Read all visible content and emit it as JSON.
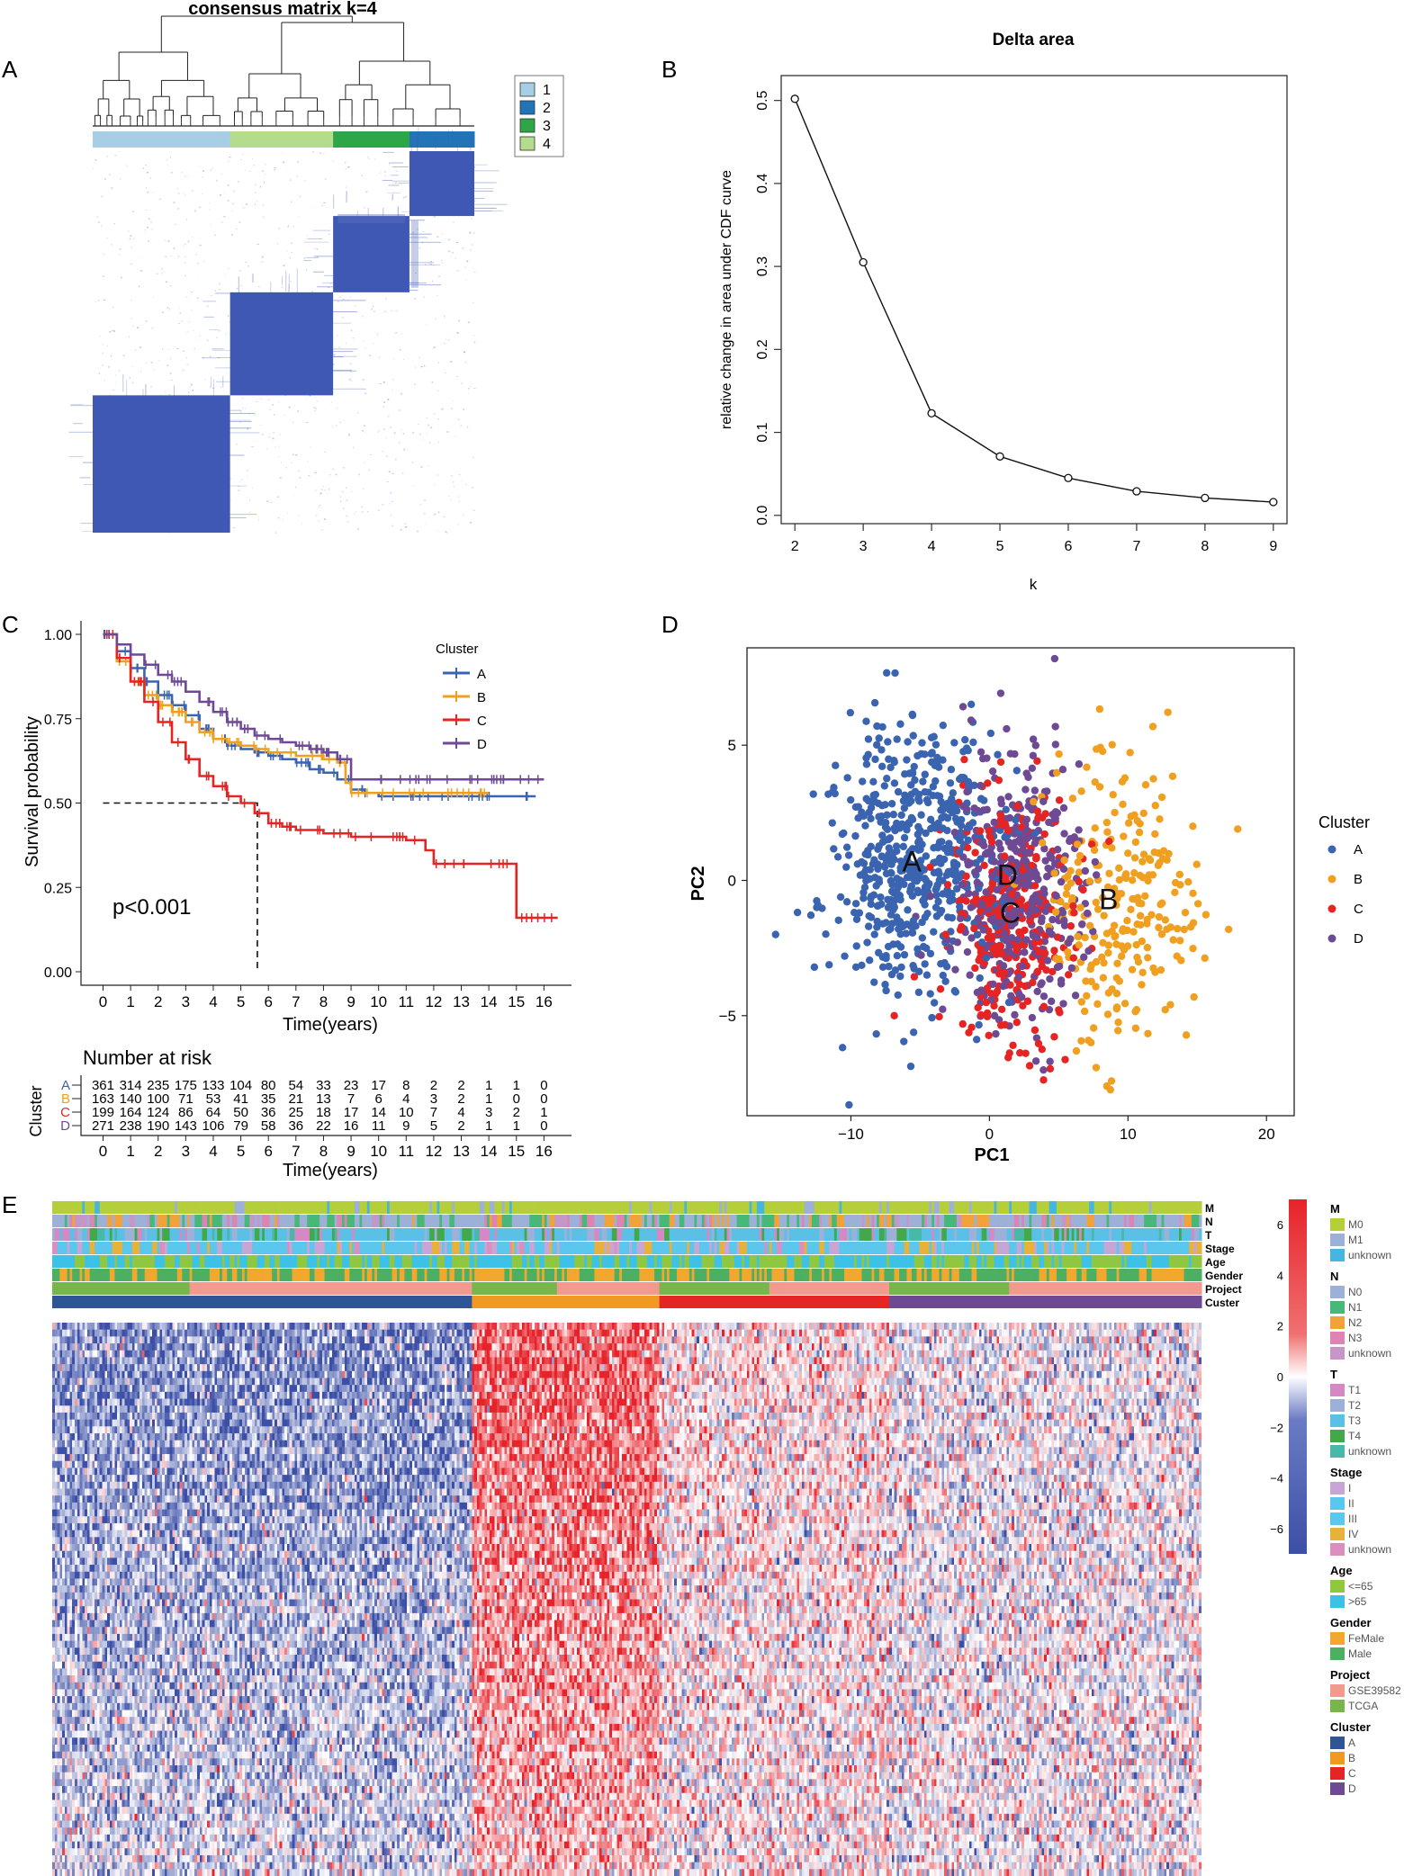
{
  "panels": {
    "a": "A",
    "b": "B",
    "c": "C",
    "d": "D",
    "e": "E"
  },
  "chart_data": [
    {
      "id": "consensus",
      "type": "heatmap",
      "title": "consensus matrix k=4",
      "legend": [
        {
          "label": "1",
          "color": "#a6cfe6"
        },
        {
          "label": "2",
          "color": "#2274b6"
        },
        {
          "label": "3",
          "color": "#2ea547"
        },
        {
          "label": "4",
          "color": "#b5dc8c"
        }
      ],
      "column_groups": [
        {
          "cluster": "1",
          "fraction": 0.36
        },
        {
          "cluster": "4",
          "fraction": 0.27
        },
        {
          "cluster": "3",
          "fraction": 0.2
        },
        {
          "cluster": "2",
          "fraction": 0.17
        }
      ],
      "block_color": "#3f58b4"
    },
    {
      "id": "delta",
      "type": "line",
      "title": "Delta area",
      "xlabel": "k",
      "ylabel": "relative change in area under CDF curve",
      "x": [
        2,
        3,
        4,
        5,
        6,
        7,
        8,
        9
      ],
      "y": [
        0.502,
        0.305,
        0.123,
        0.071,
        0.045,
        0.029,
        0.021,
        0.016
      ],
      "xlim": [
        1.8,
        9.2
      ],
      "ylim": [
        -0.01,
        0.53
      ],
      "xticks": [
        2,
        3,
        4,
        5,
        6,
        7,
        8,
        9
      ],
      "yticks": [
        0.0,
        0.1,
        0.2,
        0.3,
        0.4,
        0.5
      ],
      "ytick_labels": [
        "0.0",
        "0.1",
        "0.2",
        "0.3",
        "0.4",
        "0.5"
      ]
    },
    {
      "id": "km",
      "type": "line",
      "xlabel": "Time(years)",
      "ylabel": "Survival probability",
      "xlim": [
        -0.8,
        17
      ],
      "ylim": [
        -0.04,
        1.04
      ],
      "xticks": [
        0,
        1,
        2,
        3,
        4,
        5,
        6,
        7,
        8,
        9,
        10,
        11,
        12,
        13,
        14,
        15,
        16
      ],
      "yticks": [
        0.0,
        0.25,
        0.5,
        0.75,
        1.0
      ],
      "ytick_labels": [
        "0.00",
        "0.25",
        "0.50",
        "0.75",
        "1.00"
      ],
      "legend_title": "Cluster",
      "pvalue": "p<0.001",
      "median_line": {
        "x": 5.6,
        "y": 0.5
      },
      "series": [
        {
          "name": "A",
          "color": "#3a64b0",
          "times": [
            0,
            0.5,
            1,
            1.5,
            2,
            2.5,
            3,
            3.5,
            4,
            4.5,
            5,
            5.5,
            6,
            6.5,
            7,
            7.5,
            8,
            8.5,
            9,
            9.5,
            10,
            11,
            12,
            13,
            14,
            15.7
          ],
          "surv": [
            1.0,
            0.95,
            0.9,
            0.86,
            0.82,
            0.79,
            0.76,
            0.72,
            0.69,
            0.67,
            0.66,
            0.65,
            0.64,
            0.63,
            0.62,
            0.6,
            0.59,
            0.57,
            0.54,
            0.53,
            0.52,
            0.52,
            0.52,
            0.52,
            0.52,
            0.52
          ]
        },
        {
          "name": "B",
          "color": "#f0a021",
          "times": [
            0,
            0.5,
            1,
            1.5,
            2,
            2.5,
            3,
            3.5,
            4,
            4.5,
            5,
            5.5,
            6,
            6.5,
            7,
            7.5,
            8,
            8.5,
            8.8,
            9,
            10,
            11,
            12,
            13,
            14
          ],
          "surv": [
            1.0,
            0.92,
            0.86,
            0.82,
            0.79,
            0.77,
            0.74,
            0.71,
            0.69,
            0.68,
            0.67,
            0.66,
            0.65,
            0.65,
            0.64,
            0.64,
            0.63,
            0.62,
            0.56,
            0.53,
            0.53,
            0.53,
            0.53,
            0.53,
            0.53
          ]
        },
        {
          "name": "C",
          "color": "#e42524",
          "times": [
            0,
            0.5,
            1,
            1.5,
            2,
            2.5,
            3,
            3.5,
            4,
            4.5,
            5,
            5.5,
            6,
            6.5,
            7,
            8,
            9,
            10,
            11,
            11.7,
            12,
            13,
            14,
            14.5,
            15,
            16.5
          ],
          "surv": [
            1.0,
            0.93,
            0.86,
            0.8,
            0.74,
            0.68,
            0.63,
            0.58,
            0.55,
            0.52,
            0.5,
            0.47,
            0.44,
            0.43,
            0.42,
            0.41,
            0.4,
            0.4,
            0.39,
            0.36,
            0.32,
            0.32,
            0.32,
            0.32,
            0.16,
            0.16
          ]
        },
        {
          "name": "D",
          "color": "#6e4a94",
          "times": [
            0,
            0.5,
            1,
            1.5,
            2,
            2.5,
            3,
            3.5,
            4,
            4.5,
            5,
            5.5,
            6,
            6.5,
            7,
            7.5,
            8,
            8.5,
            9,
            10,
            11,
            12,
            13,
            14,
            15,
            16
          ],
          "surv": [
            1.0,
            0.97,
            0.94,
            0.91,
            0.88,
            0.86,
            0.83,
            0.8,
            0.77,
            0.74,
            0.72,
            0.7,
            0.69,
            0.68,
            0.67,
            0.66,
            0.65,
            0.63,
            0.57,
            0.57,
            0.57,
            0.57,
            0.57,
            0.57,
            0.57,
            0.57
          ]
        }
      ]
    },
    {
      "id": "risk",
      "type": "table",
      "title": "Number at risk",
      "ylabel": "Cluster",
      "xlabel": "Time(years)",
      "xticks": [
        0,
        1,
        2,
        3,
        4,
        5,
        6,
        7,
        8,
        9,
        10,
        11,
        12,
        13,
        14,
        15,
        16
      ],
      "rows": [
        {
          "name": "A",
          "color": "#3a64b0",
          "values": [
            "361",
            "314",
            "235",
            "175",
            "133",
            "104",
            "80",
            "54",
            "33",
            "23",
            "17",
            "8",
            "2",
            "2",
            "1",
            "1",
            "0"
          ]
        },
        {
          "name": "B",
          "color": "#f0a021",
          "values": [
            "163",
            "140",
            "100",
            "71",
            "53",
            "41",
            "35",
            "21",
            "13",
            "7",
            "6",
            "4",
            "3",
            "2",
            "1",
            "0",
            "0"
          ]
        },
        {
          "name": "C",
          "color": "#e42524",
          "values": [
            "199",
            "164",
            "124",
            "86",
            "64",
            "50",
            "36",
            "25",
            "18",
            "17",
            "14",
            "10",
            "7",
            "4",
            "3",
            "2",
            "1"
          ]
        },
        {
          "name": "D",
          "color": "#6e4a94",
          "values": [
            "271",
            "238",
            "190",
            "143",
            "106",
            "79",
            "58",
            "36",
            "22",
            "16",
            "11",
            "9",
            "5",
            "2",
            "1",
            "1",
            "0"
          ]
        }
      ]
    },
    {
      "id": "pca",
      "type": "scatter",
      "xlabel": "PC1",
      "ylabel": "PC2",
      "xlim": [
        -17.5,
        22
      ],
      "ylim": [
        -8.7,
        8.6
      ],
      "xticks": [
        -10,
        0,
        10,
        20
      ],
      "xtick_labels": [
        "−10",
        "0",
        "10",
        "20"
      ],
      "yticks": [
        -5,
        0,
        5
      ],
      "ytick_labels": [
        "−5",
        "0",
        "5"
      ],
      "legend_title": "Cluster",
      "series": [
        {
          "name": "A",
          "color": "#3a64b0",
          "center": [
            -5.5,
            0.8
          ],
          "spread": [
            4.2,
            2.6
          ],
          "n": 560
        },
        {
          "name": "B",
          "color": "#f0a021",
          "center": [
            9.5,
            -0.8
          ],
          "spread": [
            3.8,
            2.6
          ],
          "n": 250
        },
        {
          "name": "C",
          "color": "#e42524",
          "center": [
            1.5,
            -1.3
          ],
          "spread": [
            3.2,
            2.4
          ],
          "n": 310
        },
        {
          "name": "D",
          "color": "#6e4a94",
          "center": [
            2.0,
            -0.2
          ],
          "spread": [
            3.2,
            2.5
          ],
          "n": 420
        }
      ],
      "annotations": [
        {
          "text": "A",
          "x": -5.6,
          "y": 0.7
        },
        {
          "text": "D",
          "x": 1.3,
          "y": 0.2
        },
        {
          "text": "C",
          "x": 1.5,
          "y": -1.2
        },
        {
          "text": "B",
          "x": 8.6,
          "y": -0.7
        }
      ]
    },
    {
      "id": "heatmap",
      "type": "heatmap",
      "annotation_rows": [
        "M",
        "N",
        "T",
        "Stage",
        "Age",
        "Gender",
        "Project",
        "Custer"
      ],
      "clusters": [
        {
          "name": "A",
          "fraction": 0.365,
          "color": "#2f5597"
        },
        {
          "name": "B",
          "fraction": 0.162,
          "color": "#f09a24"
        },
        {
          "name": "C",
          "fraction": 0.199,
          "color": "#e42524"
        },
        {
          "name": "D",
          "fraction": 0.274,
          "color": "#6e4a94"
        }
      ],
      "n_columns": 460,
      "n_rows": 80,
      "color_scale": {
        "min": -7,
        "max": 7,
        "low": "#3b4fa6",
        "mid": "#ffffff",
        "high": "#e6232b",
        "ticks": [
          6,
          4,
          2,
          0,
          -2,
          -4,
          -6
        ],
        "tick_labels": [
          "6",
          "4",
          "2",
          "0",
          "−2",
          "−4",
          "−6"
        ]
      },
      "legends": [
        {
          "title": "M",
          "items": [
            {
              "label": "M0",
              "color": "#b4cf3a"
            },
            {
              "label": "M1",
              "color": "#9cb0d8"
            },
            {
              "label": "unknown",
              "color": "#47b6df"
            }
          ]
        },
        {
          "title": "N",
          "items": [
            {
              "label": "N0",
              "color": "#9cb0d8"
            },
            {
              "label": "N1",
              "color": "#48b879"
            },
            {
              "label": "N2",
              "color": "#f1a238"
            },
            {
              "label": "N3",
              "color": "#dd84b3"
            },
            {
              "label": "unknown",
              "color": "#c796c8"
            }
          ]
        },
        {
          "title": "T",
          "items": [
            {
              "label": "T1",
              "color": "#d588c4"
            },
            {
              "label": "T2",
              "color": "#9cb0d8"
            },
            {
              "label": "T3",
              "color": "#5bc0e6"
            },
            {
              "label": "T4",
              "color": "#43a84a"
            },
            {
              "label": "unknown",
              "color": "#48b8a9"
            }
          ]
        },
        {
          "title": "Stage",
          "items": [
            {
              "label": "I",
              "color": "#c7a6d6"
            },
            {
              "label": "II",
              "color": "#5bc7ec"
            },
            {
              "label": "III",
              "color": "#5bc7ec"
            },
            {
              "label": "IV",
              "color": "#e8b23a"
            },
            {
              "label": "unknown",
              "color": "#dc8fbe"
            }
          ]
        },
        {
          "title": "Age",
          "items": [
            {
              "label": "<=65",
              "color": "#8fc740"
            },
            {
              "label": ">65",
              "color": "#3ec1e6"
            }
          ]
        },
        {
          "title": "Gender",
          "items": [
            {
              "label": "FeMale",
              "color": "#f2a72e"
            },
            {
              "label": "Male",
              "color": "#4caf62"
            }
          ]
        },
        {
          "title": "Project",
          "items": [
            {
              "label": "GSE39582",
              "color": "#f19a8d"
            },
            {
              "label": "TCGA",
              "color": "#77b64a"
            }
          ]
        },
        {
          "title": "Cluster",
          "items": [
            {
              "label": "A",
              "color": "#2f5597"
            },
            {
              "label": "B",
              "color": "#f09a24"
            },
            {
              "label": "C",
              "color": "#e42524"
            },
            {
              "label": "D",
              "color": "#6e4a94"
            }
          ]
        }
      ]
    }
  ]
}
